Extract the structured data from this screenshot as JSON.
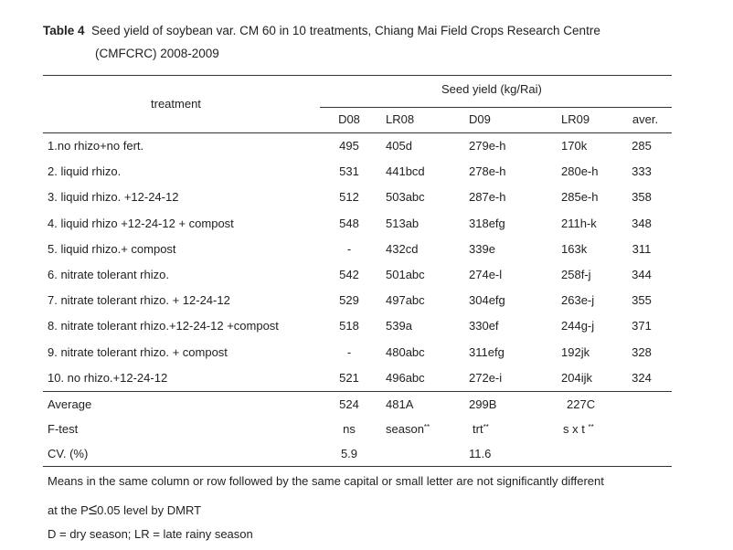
{
  "title": {
    "label": "Table 4",
    "line1": "Seed yield of soybean var. CM 60 in 10 treatments, Chiang Mai Field Crops Research Centre",
    "line2": "(CMFCRC) 2008-2009"
  },
  "header": {
    "treatment": "treatment",
    "group": "Seed yield (kg/Rai)",
    "columns": [
      "D08",
      "LR08",
      "D09",
      "LR09",
      "aver."
    ]
  },
  "rows": [
    {
      "treatment": "1.no rhizo+no fert.",
      "d08": "495",
      "lr08": "405d",
      "d09": "279e-h",
      "lr09": "170k",
      "aver": "285"
    },
    {
      "treatment": "2. liquid rhizo.",
      "d08": "531",
      "lr08": "441bcd",
      "d09": "278e-h",
      "lr09": "280e-h",
      "aver": "333"
    },
    {
      "treatment": "3. liquid rhizo. +12-24-12",
      "d08": "512",
      "lr08": "503abc",
      "d09": "287e-h",
      "lr09": "285e-h",
      "aver": "358"
    },
    {
      "treatment": "4. liquid rhizo +12-24-12 + compost",
      "d08": "548",
      "lr08": "513ab",
      "d09": "318efg",
      "lr09": "211h-k",
      "aver": "348"
    },
    {
      "treatment": "5. liquid rhizo.+ compost",
      "d08": "-",
      "lr08": "432cd",
      "d09": "339e",
      "lr09": "163k",
      "aver": "311"
    },
    {
      "treatment": "6. nitrate tolerant rhizo.",
      "d08": "542",
      "lr08": "501abc",
      "d09": "274e-l",
      "lr09": "258f-j",
      "aver": "344"
    },
    {
      "treatment": "7. nitrate tolerant rhizo. + 12-24-12",
      "d08": "529",
      "lr08": "497abc",
      "d09": "304efg",
      "lr09": "263e-j",
      "aver": "355"
    },
    {
      "treatment": "8. nitrate tolerant rhizo.+12-24-12 +compost",
      "d08": "518",
      "lr08": "539a",
      "d09": "330ef",
      "lr09": "244g-j",
      "aver": "371"
    },
    {
      "treatment": "9. nitrate tolerant rhizo. + compost",
      "d08": "-",
      "lr08": "480abc",
      "d09": "311efg",
      "lr09": "192jk",
      "aver": "328"
    },
    {
      "treatment": "10. no rhizo.+12-24-12",
      "d08": "521",
      "lr08": "496abc",
      "d09": "272e-i",
      "lr09": "204ijk",
      "aver": "324"
    }
  ],
  "summary": {
    "average": {
      "label": "Average",
      "d08": "524",
      "lr08": "481A",
      "d09": "299B",
      "lr09": "227C"
    },
    "ftest": {
      "label": "F-test",
      "d08": "ns",
      "lr08": "season",
      "d09": "trt",
      "lr09": "s x t",
      "sig": "**"
    },
    "cv": {
      "label": "CV. (%)",
      "d08": "5.9",
      "d09": "11.6"
    }
  },
  "notes": {
    "line1": "Means in the same column or row followed by the same capital or small letter are not significantly different",
    "line2_pre": "at the P",
    "line2_sym": "≤",
    "line2_post": "0.05 level by DMRT",
    "line3": "D = dry season; LR = late rainy season"
  }
}
